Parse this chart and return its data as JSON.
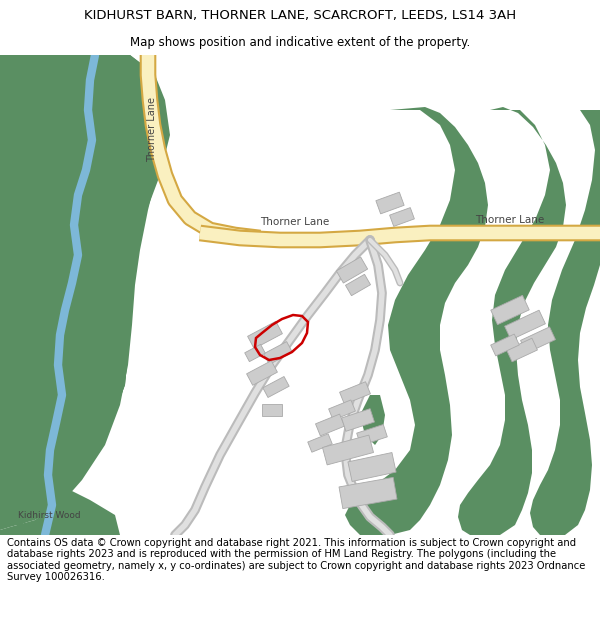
{
  "title": "KIDHURST BARN, THORNER LANE, SCARCROFT, LEEDS, LS14 3AH",
  "subtitle": "Map shows position and indicative extent of the property.",
  "footer": "Contains OS data © Crown copyright and database right 2021. This information is subject to Crown copyright and database rights 2023 and is reproduced with the permission of HM Land Registry. The polygons (including the associated geometry, namely x, y co-ordinates) are subject to Crown copyright and database rights 2023 Ordnance Survey 100026316.",
  "title_fontsize": 9.5,
  "subtitle_fontsize": 8.5,
  "footer_fontsize": 7.2,
  "green_color": "#5a8f62",
  "road_fill": "#faf0c0",
  "road_border": "#d4a843",
  "water_color": "#7db8d8",
  "building_color": "#cccccc",
  "building_edge": "#aaaaaa",
  "red_color": "#cc0000",
  "label_color": "#444444",
  "map_bg": "#ffffff"
}
